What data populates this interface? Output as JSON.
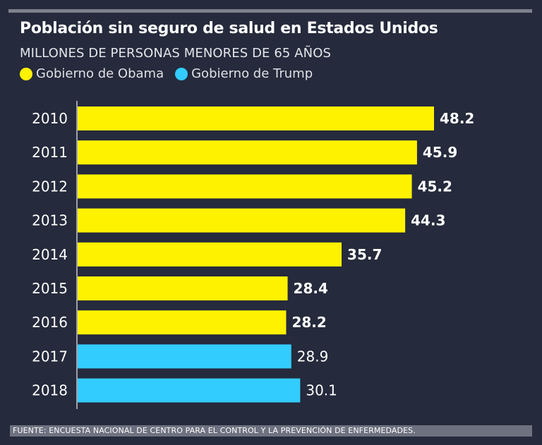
{
  "title": "Población sin seguro de salud en Estados Unidos",
  "subtitle": "MILLONES DE PERSONAS MENORES DE 65 AÑOS",
  "legend": [
    {
      "label": "Gobierno de Obama",
      "color": "#fff200"
    },
    {
      "label": "Gobierno de Trump",
      "color": "#33ccff"
    }
  ],
  "footer": "FUENTE: ENCUESTA NACIONAL DE CENTRO PARA EL CONTROL Y LA PREVENCIÓN DE ENFERMEDADES.",
  "chart_data": {
    "type": "bar",
    "orientation": "horizontal",
    "title": "Población sin seguro de salud en Estados Unidos",
    "subtitle": "MILLONES DE PERSONAS MENORES DE 65 AÑOS",
    "categories": [
      "2010",
      "2011",
      "2012",
      "2013",
      "2014",
      "2015",
      "2016",
      "2017",
      "2018"
    ],
    "values": [
      48.2,
      45.9,
      45.2,
      44.3,
      35.7,
      28.4,
      28.2,
      28.9,
      30.1
    ],
    "labels": [
      "48.2",
      "45.9",
      "45.2",
      "44.3",
      "35.7",
      "28.4",
      "28.2",
      "28.9",
      "30.1"
    ],
    "group": [
      "Gobierno de Obama",
      "Gobierno de Obama",
      "Gobierno de Obama",
      "Gobierno de Obama",
      "Gobierno de Obama",
      "Gobierno de Obama",
      "Gobierno de Obama",
      "Gobierno de Trump",
      "Gobierno de Trump"
    ],
    "xlim": [
      0,
      48.2
    ],
    "grid": false,
    "legend_position": "top-left"
  }
}
